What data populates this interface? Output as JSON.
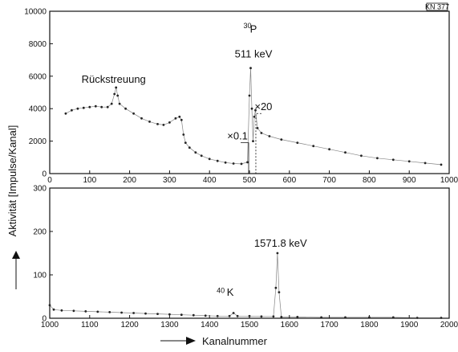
{
  "chart_data": [
    {
      "id": "top",
      "type": "scatter",
      "ylabel": "Aktivität [Impulse/Kanal]",
      "xlim": [
        0,
        1000
      ],
      "ylim": [
        0,
        10000
      ],
      "x_ticks": [
        0,
        100,
        200,
        300,
        400,
        500,
        600,
        700,
        800,
        900,
        1000
      ],
      "y_ticks": [
        0,
        2000,
        4000,
        6000,
        8000,
        10000
      ],
      "grid": false,
      "series": [
        {
          "points": [
            [
              40,
              3700
            ],
            [
              55,
              3900
            ],
            [
              70,
              4000
            ],
            [
              85,
              4050
            ],
            [
              100,
              4100
            ],
            [
              115,
              4150
            ],
            [
              130,
              4100
            ],
            [
              145,
              4100
            ],
            [
              155,
              4300
            ],
            [
              162,
              4900
            ],
            [
              166,
              5300
            ],
            [
              170,
              4800
            ],
            [
              175,
              4300
            ],
            [
              190,
              4000
            ],
            [
              210,
              3700
            ],
            [
              230,
              3400
            ],
            [
              250,
              3200
            ],
            [
              270,
              3050
            ],
            [
              285,
              3000
            ],
            [
              300,
              3150
            ],
            [
              315,
              3400
            ],
            [
              325,
              3500
            ],
            [
              330,
              3300
            ],
            [
              335,
              2400
            ],
            [
              340,
              1900
            ],
            [
              350,
              1600
            ],
            [
              365,
              1300
            ],
            [
              380,
              1100
            ],
            [
              400,
              900
            ],
            [
              420,
              780
            ],
            [
              440,
              680
            ],
            [
              460,
              620
            ],
            [
              480,
              600
            ],
            [
              495,
              700
            ],
            [
              500,
              4800
            ],
            [
              503,
              6500
            ],
            [
              506,
              4000
            ],
            [
              509,
              2000
            ],
            [
              512,
              3500
            ],
            [
              515,
              3900
            ],
            [
              520,
              2800
            ],
            [
              530,
              2500
            ],
            [
              550,
              2300
            ],
            [
              580,
              2100
            ],
            [
              620,
              1900
            ],
            [
              660,
              1700
            ],
            [
              700,
              1500
            ],
            [
              740,
              1300
            ],
            [
              780,
              1100
            ],
            [
              820,
              950
            ],
            [
              860,
              850
            ],
            [
              900,
              750
            ],
            [
              940,
              650
            ],
            [
              980,
              550
            ]
          ]
        }
      ],
      "annotations": [
        {
          "text": "Rückstreuung",
          "x": 160,
          "y": 5600
        },
        {
          "text": "30",
          "x": 495,
          "y": 8950,
          "style": "superscript"
        },
        {
          "text": "P",
          "x": 510,
          "y": 8700
        },
        {
          "text": "511 keV",
          "x": 510,
          "y": 7150
        },
        {
          "text": "×0.1",
          "x": 470,
          "y": 2100
        },
        {
          "text": "×20",
          "x": 535,
          "y": 3900
        }
      ],
      "corner_label": "KN 377"
    },
    {
      "id": "bottom",
      "type": "scatter",
      "xlabel": "Kanalnummer",
      "xlim": [
        1000,
        2000
      ],
      "ylim": [
        0,
        300
      ],
      "x_ticks": [
        1000,
        1100,
        1200,
        1300,
        1400,
        1500,
        1600,
        1700,
        1800,
        1900,
        2000
      ],
      "y_ticks": [
        0,
        100,
        200,
        300
      ],
      "grid": false,
      "series": [
        {
          "points": [
            [
              1000,
              30
            ],
            [
              1010,
              20
            ],
            [
              1030,
              18
            ],
            [
              1060,
              17
            ],
            [
              1090,
              16
            ],
            [
              1120,
              15
            ],
            [
              1150,
              14
            ],
            [
              1180,
              13
            ],
            [
              1210,
              12
            ],
            [
              1240,
              11
            ],
            [
              1270,
              10
            ],
            [
              1300,
              9
            ],
            [
              1330,
              8
            ],
            [
              1360,
              7
            ],
            [
              1390,
              6
            ],
            [
              1420,
              5
            ],
            [
              1450,
              5
            ],
            [
              1460,
              12
            ],
            [
              1470,
              5
            ],
            [
              1500,
              5
            ],
            [
              1530,
              4
            ],
            [
              1560,
              4
            ],
            [
              1566,
              70
            ],
            [
              1570,
              150
            ],
            [
              1574,
              60
            ],
            [
              1580,
              3
            ],
            [
              1620,
              3
            ],
            [
              1680,
              2
            ],
            [
              1740,
              2
            ],
            [
              1800,
              2
            ],
            [
              1860,
              2
            ],
            [
              1920,
              1
            ],
            [
              1980,
              1
            ]
          ]
        }
      ],
      "annotations": [
        {
          "text": "1571.8 keV",
          "x": 1578,
          "y": 165
        },
        {
          "text": "40",
          "x": 1428,
          "y": 58,
          "style": "superscript"
        },
        {
          "text": "K",
          "x": 1452,
          "y": 52
        }
      ]
    }
  ]
}
